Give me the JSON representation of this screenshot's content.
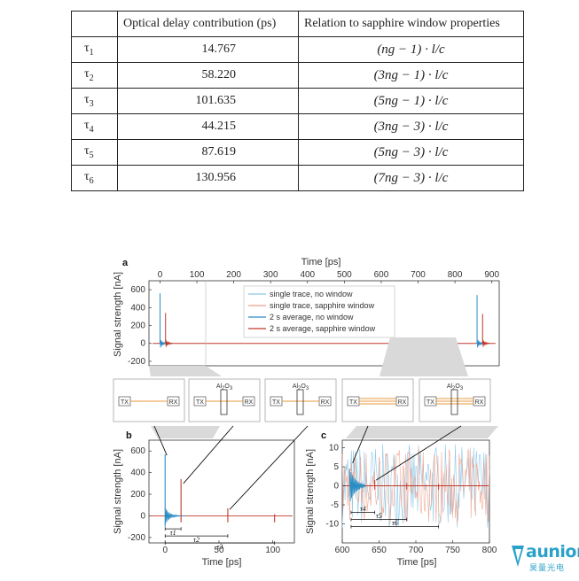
{
  "table": {
    "headers": [
      "",
      "Optical delay contribution (ps)",
      "Relation to sapphire window properties"
    ],
    "rows": [
      {
        "tau": "τ",
        "sub": "1",
        "value": "14.767",
        "relation": "(ng − 1) · l/c"
      },
      {
        "tau": "τ",
        "sub": "2",
        "value": "58.220",
        "relation": "(3ng − 1) · l/c"
      },
      {
        "tau": "τ",
        "sub": "3",
        "value": "101.635",
        "relation": "(5ng − 1) · l/c"
      },
      {
        "tau": "τ",
        "sub": "4",
        "value": "44.215",
        "relation": "(3ng − 3) · l/c"
      },
      {
        "tau": "τ",
        "sub": "5",
        "value": "87.619",
        "relation": "(5ng − 3) · l/c"
      },
      {
        "tau": "τ",
        "sub": "6",
        "value": "130.956",
        "relation": "(7ng − 3) · l/c"
      }
    ]
  },
  "figure": {
    "panel_labels": {
      "a": "a",
      "b": "b",
      "c": "c"
    },
    "top_axis_label": "Time [ps]",
    "ylabel_a": "Signal strength [nA]",
    "ylabel_b": "Signal strength [nA]",
    "ylabel_c": "Signal strength [nA]",
    "xlabel_b": "Time [ps]",
    "xlabel_c": "Time [ps]",
    "legend": [
      {
        "label": "single trace, no window",
        "color": "#8ec8e8"
      },
      {
        "label": "single trace, sapphire window",
        "color": "#f0a08a"
      },
      {
        "label": "2 s average, no window",
        "color": "#2b8cc4"
      },
      {
        "label": "2 s average, sapphire window",
        "color": "#c0392b"
      }
    ],
    "schematics": [
      {
        "tx": "TX",
        "rx": "RX",
        "window": false,
        "label": "",
        "lines": 1
      },
      {
        "tx": "TX",
        "rx": "RX",
        "window": true,
        "label": "Al2O3",
        "lines": 1
      },
      {
        "tx": "TX",
        "rx": "RX",
        "window": true,
        "label": "Al2O3",
        "lines": 1
      },
      {
        "tx": "TX",
        "rx": "RX",
        "window": false,
        "label": "",
        "lines": 3
      },
      {
        "tx": "TX",
        "rx": "RX",
        "window": true,
        "label": "Al2O3",
        "lines": 3
      }
    ],
    "annotations_b": [
      "τ1",
      "τ2",
      "τ3"
    ],
    "annotations_c": [
      "τ4",
      "τ5",
      "τ6"
    ]
  },
  "chart_data": [
    {
      "type": "line",
      "panel": "a",
      "xlabel": "Time [ps]",
      "ylabel": "Signal strength [nA]",
      "xlim": [
        -30,
        920
      ],
      "ylim": [
        -250,
        700
      ],
      "xticks": [
        0,
        100,
        200,
        300,
        400,
        500,
        600,
        700,
        800,
        900
      ],
      "yticks": [
        -200,
        0,
        200,
        400,
        600
      ],
      "grid": false,
      "legend_position": "top-center",
      "series": [
        {
          "name": "2 s average, no window",
          "x": [
            0,
            860
          ],
          "peak": [
            560,
            540
          ]
        },
        {
          "name": "2 s average, sapphire window",
          "x": [
            15,
            875
          ],
          "peak": [
            340,
            330
          ]
        }
      ]
    },
    {
      "type": "line",
      "panel": "b",
      "xlabel": "Time [ps]",
      "ylabel": "Signal strength [nA]",
      "xlim": [
        -15,
        120
      ],
      "ylim": [
        -250,
        700
      ],
      "xticks": [
        0,
        50,
        100
      ],
      "yticks": [
        -200,
        0,
        200,
        400,
        600
      ],
      "grid": false,
      "series": [
        {
          "name": "2 s average, no window",
          "x": [
            0
          ],
          "y": [
            570
          ]
        },
        {
          "name": "2 s average, sapphire window",
          "x": [
            14.767,
            58.22,
            101.635
          ],
          "y": [
            340,
            70,
            15
          ]
        }
      ]
    },
    {
      "type": "line",
      "panel": "c",
      "xlabel": "Time [ps]",
      "ylabel": "Signal strength [nA]",
      "xlim": [
        600,
        800
      ],
      "ylim": [
        -15,
        12
      ],
      "xticks": [
        600,
        650,
        700,
        750,
        800
      ],
      "yticks": [
        -10,
        -5,
        0,
        5,
        10
      ],
      "grid": false,
      "series": [
        {
          "name": "2 s average, no window",
          "x": [
            615
          ],
          "y": [
            5
          ]
        },
        {
          "name": "2 s average, sapphire window",
          "x": [
            644.215,
            687.619,
            730.956
          ],
          "y": [
            1.5,
            0.8,
            0.5
          ]
        }
      ]
    }
  ],
  "logo": {
    "word": "aunion",
    "sub": "昊量光电",
    "color": "#2aa1c9"
  }
}
